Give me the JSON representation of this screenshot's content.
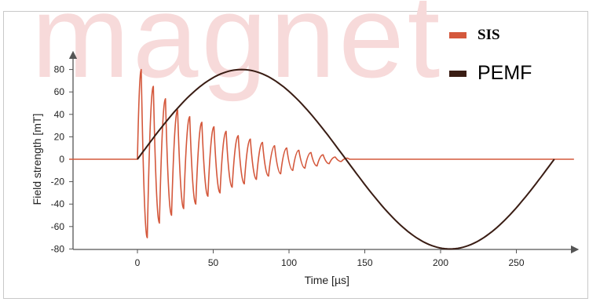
{
  "colors": {
    "sis": "#d4583c",
    "pemf": "#3a1d14",
    "axis": "#555555",
    "watermark": "#f7dada"
  },
  "watermark": {
    "text": "magnet"
  },
  "legend": {
    "items": [
      {
        "label": "SIS",
        "color": "#d4583c"
      },
      {
        "label": "PEMF",
        "color": "#3a1d14"
      }
    ]
  },
  "chart_data": {
    "type": "line",
    "title": "",
    "xlabel": "Time [µs]",
    "ylabel": "Field strength [mT]",
    "xlim": [
      -45,
      285
    ],
    "ylim": [
      -80,
      85
    ],
    "x_ticks": [
      0,
      50,
      100,
      150,
      200,
      250
    ],
    "y_ticks": [
      80,
      60,
      40,
      20,
      0,
      -20,
      -40,
      -60,
      -80
    ],
    "grid": false,
    "legend_position": "top-right",
    "series": [
      {
        "name": "SIS",
        "style": "damped-oscillation",
        "onset_us": 0,
        "period_us": 7.8,
        "decay_end_us": 140,
        "x_end": 288,
        "peaks": [
          [
            2.5,
            80
          ],
          [
            6.5,
            -70
          ],
          [
            10.5,
            65
          ],
          [
            14.5,
            -57
          ],
          [
            18.5,
            54
          ],
          [
            22.5,
            -50
          ],
          [
            26.5,
            44
          ],
          [
            30.5,
            -44
          ],
          [
            34.5,
            38
          ],
          [
            38.5,
            -40
          ],
          [
            42.5,
            33
          ],
          [
            46.5,
            -33
          ],
          [
            50.5,
            29
          ],
          [
            54.5,
            -30
          ],
          [
            58.5,
            25
          ],
          [
            62.5,
            -25
          ],
          [
            66.5,
            21
          ],
          [
            70.5,
            -22
          ],
          [
            74.5,
            18
          ],
          [
            78.5,
            -18
          ],
          [
            82.5,
            15
          ],
          [
            86.5,
            -15
          ],
          [
            90.5,
            12
          ],
          [
            94.5,
            -13
          ],
          [
            98.5,
            10
          ],
          [
            102.5,
            -10
          ],
          [
            106.5,
            8
          ],
          [
            110.5,
            -8
          ],
          [
            114.5,
            6
          ],
          [
            118.5,
            -6
          ],
          [
            122.5,
            4
          ],
          [
            126.5,
            -4
          ],
          [
            130.5,
            2
          ],
          [
            134.5,
            -2
          ],
          [
            138.5,
            1
          ]
        ]
      },
      {
        "name": "PEMF",
        "style": "sine-one-period",
        "x": [
          0,
          70,
          140,
          210,
          275
        ],
        "y": [
          0,
          80,
          0,
          -80,
          0
        ]
      }
    ]
  }
}
